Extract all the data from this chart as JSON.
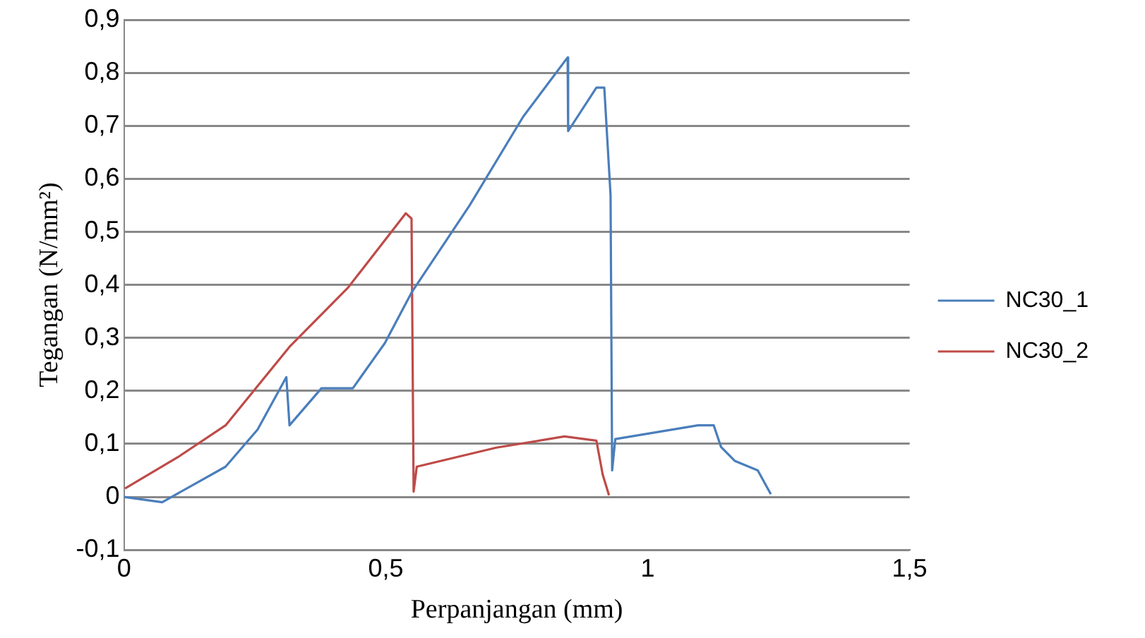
{
  "chart_data": {
    "type": "line",
    "xlabel": "Perpanjangan (mm)",
    "ylabel": "Tegangan (N/mm²)",
    "xlim": [
      0,
      1.5
    ],
    "xticks": [
      0,
      {
        "value": 0.5,
        "label": "0,5"
      },
      1,
      {
        "value": 1.5,
        "label": "1,5"
      }
    ],
    "ylim": [
      -0.1,
      0.9
    ],
    "yticks": [
      {
        "value": -0.1,
        "label": "-0,1"
      },
      0,
      {
        "value": 0.1,
        "label": "0,1"
      },
      {
        "value": 0.2,
        "label": "0,2"
      },
      {
        "value": 0.3,
        "label": "0,3"
      },
      {
        "value": 0.4,
        "label": "0,4"
      },
      {
        "value": 0.5,
        "label": "0,5"
      },
      {
        "value": 0.6,
        "label": "0,6"
      },
      {
        "value": 0.7,
        "label": "0,7"
      },
      {
        "value": 0.8,
        "label": "0,8"
      },
      {
        "value": 0.9,
        "label": "0,9"
      }
    ],
    "grid": "y",
    "legend": "right",
    "marker": "none",
    "line_style": "solid",
    "series": [
      {
        "name": "NC30_1",
        "color": "#4a7ebb",
        "x": [
          0,
          0.073,
          0.194,
          0.255,
          0.31,
          0.316,
          0.377,
          0.437,
          0.498,
          0.55,
          0.66,
          0.762,
          0.847,
          0.848,
          0.902,
          0.917,
          0.929,
          0.932,
          0.938,
          1.096,
          1.126,
          1.14,
          1.166,
          1.21,
          1.235
        ],
        "values": [
          0,
          -0.01,
          0.057,
          0.127,
          0.226,
          0.135,
          0.205,
          0.205,
          0.29,
          0.387,
          0.55,
          0.717,
          0.829,
          0.69,
          0.772,
          0.772,
          0.569,
          0.05,
          0.109,
          0.135,
          0.135,
          0.094,
          0.068,
          0.05,
          0.005
        ]
      },
      {
        "name": "NC30_2",
        "color": "#be4b48",
        "x": [
          0.002,
          0.103,
          0.194,
          0.316,
          0.428,
          0.538,
          0.549,
          0.553,
          0.559,
          0.711,
          0.841,
          0.902,
          0.914,
          0.926
        ],
        "values": [
          0.016,
          0.075,
          0.135,
          0.283,
          0.395,
          0.535,
          0.525,
          0.01,
          0.057,
          0.093,
          0.114,
          0.106,
          0.042,
          0.003
        ]
      }
    ]
  }
}
